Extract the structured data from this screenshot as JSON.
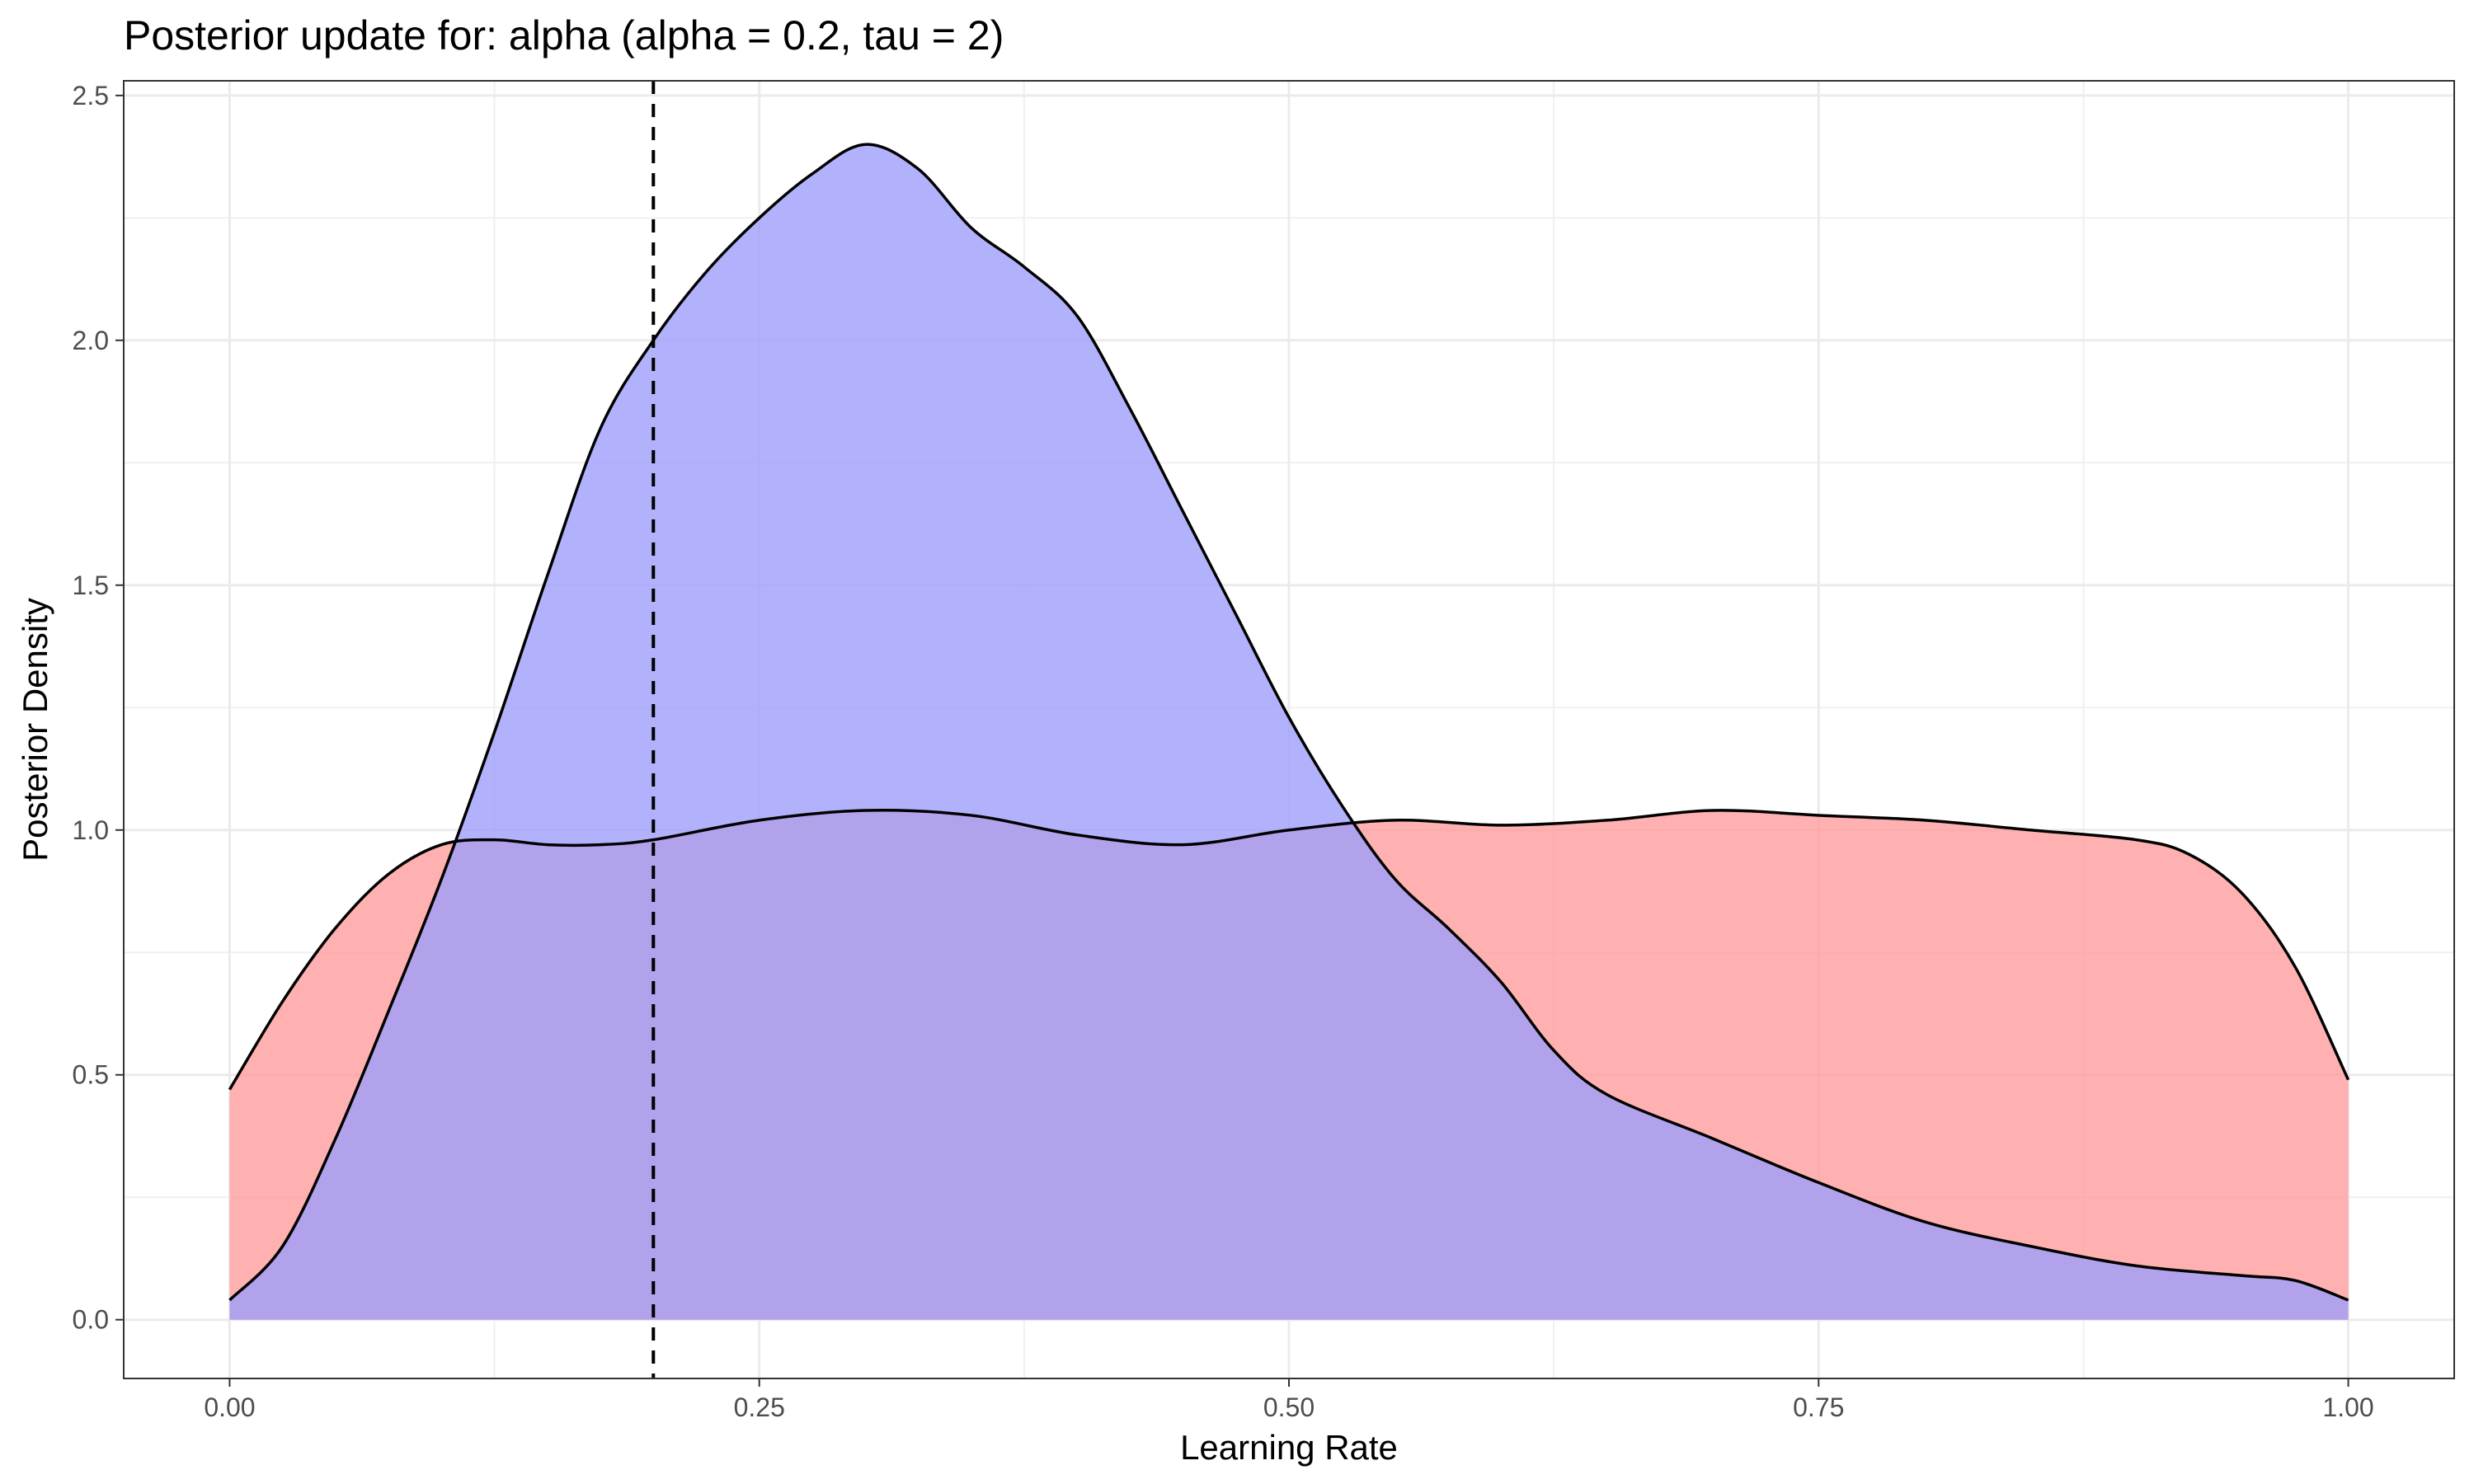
{
  "chart_data": {
    "type": "area",
    "title": "Posterior update for: alpha (alpha = 0.2, tau = 2)",
    "xlabel": "Learning Rate",
    "ylabel": "Posterior Density",
    "xlim": [
      -0.05,
      1.05
    ],
    "ylim": [
      -0.12,
      2.53
    ],
    "x_ticks": [
      0.0,
      0.25,
      0.5,
      0.75,
      1.0
    ],
    "x_tick_labels": [
      "0.00",
      "0.25",
      "0.50",
      "0.75",
      "1.00"
    ],
    "y_ticks": [
      0.0,
      0.5,
      1.0,
      1.5,
      2.0,
      2.5
    ],
    "y_tick_labels": [
      "0.0",
      "0.5",
      "1.0",
      "1.5",
      "2.0",
      "2.5"
    ],
    "grid": true,
    "reference_line": {
      "x": 0.2,
      "style": "dashed"
    },
    "series": [
      {
        "fill": "#ff9e9e",
        "x": [
          0.0,
          0.025,
          0.05,
          0.075,
          0.1,
          0.125,
          0.15,
          0.175,
          0.2,
          0.25,
          0.3,
          0.35,
          0.4,
          0.45,
          0.5,
          0.55,
          0.6,
          0.65,
          0.7,
          0.75,
          0.8,
          0.85,
          0.9,
          0.925,
          0.95,
          0.975,
          1.0
        ],
        "values": [
          0.47,
          0.65,
          0.8,
          0.91,
          0.97,
          0.98,
          0.97,
          0.97,
          0.98,
          1.02,
          1.04,
          1.03,
          0.99,
          0.97,
          1.0,
          1.02,
          1.01,
          1.02,
          1.04,
          1.03,
          1.02,
          1.0,
          0.98,
          0.95,
          0.87,
          0.72,
          0.49
        ]
      },
      {
        "fill": "#9f9ffb",
        "x": [
          0.0,
          0.025,
          0.05,
          0.075,
          0.1,
          0.125,
          0.15,
          0.175,
          0.2,
          0.225,
          0.25,
          0.275,
          0.3,
          0.325,
          0.35,
          0.375,
          0.4,
          0.425,
          0.45,
          0.475,
          0.5,
          0.525,
          0.55,
          0.575,
          0.6,
          0.625,
          0.65,
          0.7,
          0.75,
          0.8,
          0.85,
          0.9,
          0.95,
          0.975,
          1.0
        ],
        "values": [
          0.04,
          0.15,
          0.37,
          0.63,
          0.9,
          1.2,
          1.52,
          1.82,
          2.0,
          2.14,
          2.25,
          2.34,
          2.4,
          2.35,
          2.23,
          2.15,
          2.05,
          1.86,
          1.65,
          1.44,
          1.23,
          1.05,
          0.9,
          0.8,
          0.69,
          0.55,
          0.46,
          0.37,
          0.28,
          0.2,
          0.15,
          0.11,
          0.09,
          0.08,
          0.04
        ]
      }
    ]
  }
}
